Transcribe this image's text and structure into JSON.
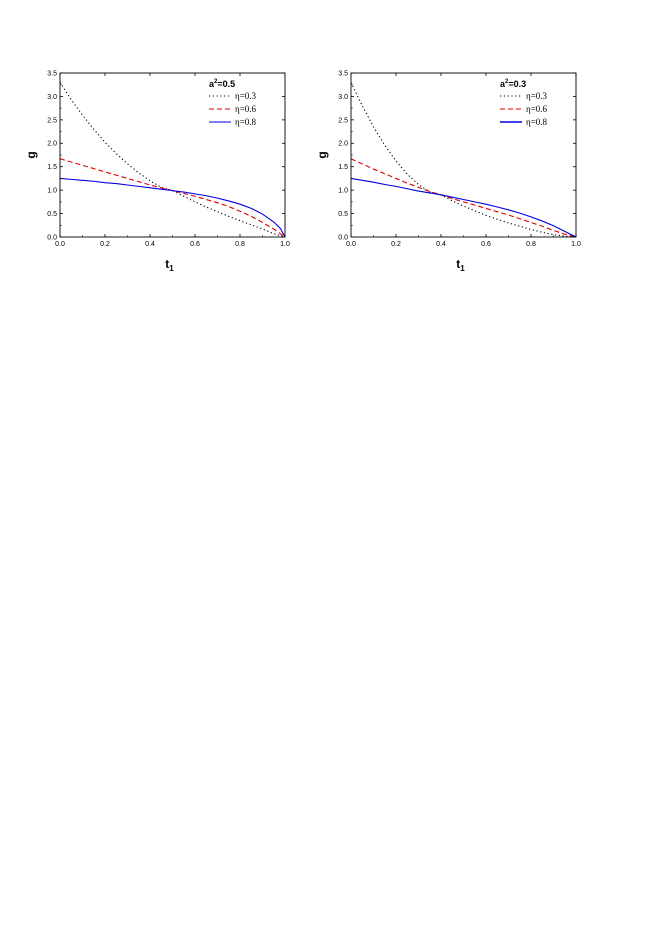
{
  "chart_data": [
    {
      "type": "line",
      "xlabel": "t",
      "xlabel_sub": "1",
      "ylabel": "g",
      "xlim": [
        0.0,
        1.0
      ],
      "ylim": [
        0.0,
        3.5
      ],
      "xticks": [
        "0.0",
        "0.2",
        "0.4",
        "0.6",
        "0.8",
        "1.0"
      ],
      "yticks": [
        "0.0",
        "0.5",
        "1.0",
        "1.5",
        "2.0",
        "2.5",
        "3.0",
        "3.5"
      ],
      "legend": {
        "title_base": "a",
        "title_sup": "2",
        "title_rest": "=0.5",
        "placement": "top-right"
      },
      "series": [
        {
          "name": "η=0.3",
          "style": "dotted",
          "color": "#000000",
          "x": [
            0.0,
            0.05,
            0.1,
            0.15,
            0.2,
            0.25,
            0.3,
            0.35,
            0.4,
            0.45,
            0.5,
            0.55,
            0.6,
            0.65,
            0.7,
            0.75,
            0.8,
            0.85,
            0.9,
            0.95,
            1.0
          ],
          "y": [
            3.3,
            2.93,
            2.6,
            2.3,
            2.02,
            1.78,
            1.56,
            1.37,
            1.2,
            1.06,
            0.99,
            0.87,
            0.75,
            0.64,
            0.54,
            0.44,
            0.35,
            0.26,
            0.17,
            0.07,
            0.0
          ]
        },
        {
          "name": "η=0.6",
          "style": "dashed",
          "color": "#e00000",
          "x": [
            0.0,
            0.05,
            0.1,
            0.15,
            0.2,
            0.25,
            0.3,
            0.35,
            0.4,
            0.45,
            0.5,
            0.55,
            0.6,
            0.65,
            0.7,
            0.75,
            0.8,
            0.85,
            0.9,
            0.95,
            1.0
          ],
          "y": [
            1.67,
            1.6,
            1.53,
            1.46,
            1.39,
            1.32,
            1.25,
            1.18,
            1.11,
            1.05,
            0.99,
            0.93,
            0.87,
            0.8,
            0.73,
            0.65,
            0.55,
            0.44,
            0.31,
            0.17,
            0.0
          ]
        },
        {
          "name": "η=0.8",
          "style": "solid",
          "color": "#0000e0",
          "x": [
            0.0,
            0.05,
            0.1,
            0.15,
            0.2,
            0.25,
            0.3,
            0.35,
            0.4,
            0.45,
            0.5,
            0.55,
            0.6,
            0.65,
            0.7,
            0.75,
            0.8,
            0.85,
            0.9,
            0.95,
            0.98,
            1.0
          ],
          "y": [
            1.25,
            1.23,
            1.21,
            1.19,
            1.16,
            1.14,
            1.11,
            1.08,
            1.05,
            1.02,
            0.99,
            0.96,
            0.92,
            0.88,
            0.83,
            0.77,
            0.7,
            0.61,
            0.49,
            0.32,
            0.18,
            0.0
          ]
        }
      ]
    },
    {
      "type": "line",
      "xlabel": "t",
      "xlabel_sub": "1",
      "ylabel": "g",
      "xlim": [
        0.0,
        1.0
      ],
      "ylim": [
        0.0,
        3.5
      ],
      "xticks": [
        "0.0",
        "0.2",
        "0.4",
        "0.6",
        "0.8",
        "1.0"
      ],
      "yticks": [
        "0.0",
        "0.5",
        "1.0",
        "1.5",
        "2.0",
        "2.5",
        "3.0",
        "3.5"
      ],
      "legend": {
        "title_base": "a",
        "title_sup": "2",
        "title_rest": "=0.3",
        "placement": "top-right"
      },
      "series": [
        {
          "name": "η=0.3",
          "style": "dotted",
          "color": "#000000",
          "x": [
            0.0,
            0.05,
            0.1,
            0.15,
            0.2,
            0.25,
            0.3,
            0.35,
            0.4,
            0.45,
            0.5,
            0.55,
            0.6,
            0.65,
            0.7,
            0.75,
            0.8,
            0.85,
            0.9,
            0.95,
            1.0
          ],
          "y": [
            3.3,
            2.8,
            2.35,
            1.96,
            1.62,
            1.34,
            1.12,
            0.96,
            0.9,
            0.77,
            0.66,
            0.56,
            0.46,
            0.38,
            0.3,
            0.23,
            0.16,
            0.1,
            0.05,
            0.02,
            0.0
          ]
        },
        {
          "name": "η=0.6",
          "style": "dashed",
          "color": "#e00000",
          "x": [
            0.0,
            0.05,
            0.1,
            0.15,
            0.2,
            0.25,
            0.3,
            0.35,
            0.4,
            0.45,
            0.5,
            0.55,
            0.6,
            0.65,
            0.7,
            0.75,
            0.8,
            0.85,
            0.9,
            0.95,
            1.0
          ],
          "y": [
            1.67,
            1.56,
            1.45,
            1.35,
            1.25,
            1.15,
            1.06,
            0.97,
            0.9,
            0.82,
            0.75,
            0.68,
            0.61,
            0.54,
            0.47,
            0.39,
            0.31,
            0.23,
            0.14,
            0.06,
            0.0
          ]
        },
        {
          "name": "η=0.8",
          "style": "solid",
          "color": "#0000e0",
          "x": [
            0.0,
            0.05,
            0.1,
            0.15,
            0.2,
            0.25,
            0.3,
            0.35,
            0.4,
            0.45,
            0.5,
            0.55,
            0.6,
            0.65,
            0.7,
            0.75,
            0.8,
            0.85,
            0.9,
            0.95,
            1.0
          ],
          "y": [
            1.25,
            1.21,
            1.17,
            1.12,
            1.08,
            1.03,
            0.98,
            0.94,
            0.9,
            0.85,
            0.8,
            0.75,
            0.7,
            0.64,
            0.58,
            0.51,
            0.43,
            0.34,
            0.24,
            0.12,
            0.0
          ]
        }
      ]
    }
  ]
}
